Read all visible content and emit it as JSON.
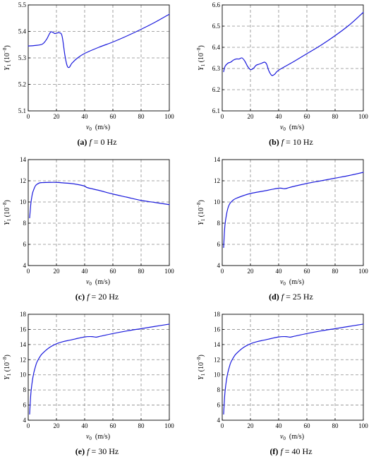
{
  "figure": {
    "charts": [
      {
        "id": "a",
        "caption": {
          "letter": "(a)",
          "var": "f",
          "rest": " = 0 Hz"
        },
        "ylabel": {
          "sym": "Y",
          "sub": "1",
          "unit": " (10",
          "exp": "−8",
          "close": ")"
        },
        "xlabel": {
          "sym": "v",
          "sub": "0",
          "unit": "  (m/s)"
        }
      },
      {
        "id": "b",
        "caption": {
          "letter": "(b)",
          "var": "f",
          "rest": " = 10 Hz"
        },
        "ylabel": {
          "sym": "Y",
          "sub": "1",
          "unit": " (10",
          "exp": "−8",
          "close": ")"
        },
        "xlabel": {
          "sym": "v",
          "sub": "0",
          "unit": "  (m/s)"
        }
      },
      {
        "id": "c",
        "caption": {
          "letter": "(c)",
          "var": "f",
          "rest": " = 20 Hz"
        },
        "ylabel": {
          "sym": "Y",
          "sub": "1",
          "unit": " (10",
          "exp": "−8",
          "close": ")"
        },
        "xlabel": {
          "sym": "v",
          "sub": "0",
          "unit": "  (m/s)"
        }
      },
      {
        "id": "d",
        "caption": {
          "letter": "(d)",
          "var": "f",
          "rest": " = 25 Hz"
        },
        "ylabel": {
          "sym": "Y",
          "sub": "1",
          "unit": " (10",
          "exp": "−8",
          "close": ")"
        },
        "xlabel": {
          "sym": "v",
          "sub": "0",
          "unit": "  (m/s)"
        }
      },
      {
        "id": "e",
        "caption": {
          "letter": "(e)",
          "var": "f",
          "rest": " = 30 Hz"
        },
        "ylabel": {
          "sym": "Y",
          "sub": "1",
          "unit": " (10",
          "exp": "−8",
          "close": ")"
        },
        "xlabel": {
          "sym": "v",
          "sub": "0",
          "unit": "  (m/s)"
        }
      },
      {
        "id": "f",
        "caption": {
          "letter": "(f)",
          "var": "f",
          "rest": " = 40 Hz"
        },
        "ylabel": {
          "sym": "Y",
          "sub": "1",
          "unit": " (10",
          "exp": "−8",
          "close": ")"
        },
        "xlabel": {
          "sym": "v",
          "sub": "0",
          "unit": "  (m/s)"
        }
      }
    ]
  },
  "colors": {
    "line": "#1a1adc",
    "grid": "#8a8a8a",
    "axis": "#000000"
  },
  "chart_data": [
    {
      "type": "line",
      "xlim": [
        0,
        100
      ],
      "ylim": [
        5.1,
        5.5
      ],
      "xticks": [
        0,
        20,
        40,
        60,
        80,
        100
      ],
      "yticks": [
        5.1,
        5.2,
        5.3,
        5.4,
        5.5
      ],
      "ytick_labels": [
        "5.1",
        "5.2",
        "5.3",
        "5.4",
        "5.5"
      ],
      "grid": true,
      "series": [
        {
          "x": [
            0,
            5,
            10,
            13,
            16,
            19,
            22,
            24,
            26,
            27.5,
            29,
            31,
            35,
            40,
            50,
            60,
            70,
            80,
            90,
            100
          ],
          "y": [
            5.345,
            5.347,
            5.352,
            5.37,
            5.398,
            5.392,
            5.395,
            5.382,
            5.31,
            5.272,
            5.264,
            5.28,
            5.3,
            5.317,
            5.34,
            5.36,
            5.383,
            5.408,
            5.435,
            5.465
          ]
        }
      ]
    },
    {
      "type": "line",
      "xlim": [
        0,
        100
      ],
      "ylim": [
        6.1,
        6.6
      ],
      "xticks": [
        0,
        20,
        40,
        60,
        80,
        100
      ],
      "yticks": [
        6.1,
        6.2,
        6.3,
        6.4,
        6.5,
        6.6
      ],
      "ytick_labels": [
        "6.1",
        "6.2",
        "6.3",
        "6.4",
        "6.5",
        "6.6"
      ],
      "grid": true,
      "series": [
        {
          "x": [
            1,
            2,
            4,
            6,
            8,
            10,
            12,
            14,
            16,
            18,
            20,
            22,
            24,
            26,
            28,
            30,
            31.5,
            33,
            35,
            37,
            40,
            50,
            60,
            70,
            80,
            90,
            100
          ],
          "y": [
            6.285,
            6.31,
            6.325,
            6.33,
            6.34,
            6.345,
            6.345,
            6.35,
            6.335,
            6.31,
            6.295,
            6.3,
            6.315,
            6.32,
            6.325,
            6.33,
            6.32,
            6.29,
            6.268,
            6.272,
            6.292,
            6.33,
            6.37,
            6.41,
            6.455,
            6.505,
            6.565
          ]
        }
      ]
    },
    {
      "type": "line",
      "xlim": [
        0,
        100
      ],
      "ylim": [
        4,
        14
      ],
      "xticks": [
        0,
        20,
        40,
        60,
        80,
        100
      ],
      "yticks": [
        4,
        6,
        8,
        10,
        12,
        14
      ],
      "ytick_labels": [
        "4",
        "6",
        "8",
        "10",
        "12",
        "14"
      ],
      "grid": true,
      "series": [
        {
          "x": [
            1,
            1.5,
            2,
            3,
            4,
            5,
            6,
            8,
            10,
            15,
            20,
            25,
            30,
            35,
            40,
            42,
            50,
            60,
            70,
            80,
            90,
            100
          ],
          "y": [
            8.5,
            9.3,
            10.0,
            10.8,
            11.2,
            11.5,
            11.65,
            11.8,
            11.83,
            11.85,
            11.85,
            11.8,
            11.75,
            11.65,
            11.5,
            11.35,
            11.1,
            10.75,
            10.45,
            10.15,
            9.95,
            9.75
          ]
        }
      ]
    },
    {
      "type": "line",
      "xlim": [
        0,
        100
      ],
      "ylim": [
        4,
        14
      ],
      "xticks": [
        0,
        20,
        40,
        60,
        80,
        100
      ],
      "yticks": [
        4,
        6,
        8,
        10,
        12,
        14
      ],
      "ytick_labels": [
        "4",
        "6",
        "8",
        "10",
        "12",
        "14"
      ],
      "grid": true,
      "series": [
        {
          "x": [
            1,
            1.5,
            2,
            3,
            4,
            5,
            6,
            8,
            10,
            15,
            20,
            30,
            40,
            44,
            46,
            50,
            60,
            70,
            80,
            90,
            100
          ],
          "y": [
            5.7,
            7.0,
            7.9,
            8.8,
            9.4,
            9.75,
            9.95,
            10.2,
            10.35,
            10.6,
            10.8,
            11.05,
            11.3,
            11.25,
            11.3,
            11.45,
            11.75,
            12.0,
            12.25,
            12.5,
            12.8
          ]
        }
      ]
    },
    {
      "type": "line",
      "xlim": [
        0,
        100
      ],
      "ylim": [
        4,
        18
      ],
      "xticks": [
        0,
        20,
        40,
        60,
        80,
        100
      ],
      "yticks": [
        4,
        6,
        8,
        10,
        12,
        14,
        16,
        18
      ],
      "ytick_labels": [
        "4",
        "6",
        "8",
        "10",
        "12",
        "14",
        "16",
        "18"
      ],
      "grid": true,
      "series": [
        {
          "x": [
            1,
            1.5,
            2,
            3,
            4,
            5,
            6,
            8,
            10,
            15,
            20,
            25,
            30,
            40,
            45,
            48,
            50,
            60,
            70,
            80,
            90,
            100
          ],
          "y": [
            4.8,
            6.5,
            7.8,
            9.3,
            10.3,
            11.0,
            11.6,
            12.3,
            12.8,
            13.6,
            14.1,
            14.4,
            14.6,
            15.0,
            15.05,
            14.98,
            15.05,
            15.45,
            15.8,
            16.1,
            16.4,
            16.7
          ]
        }
      ]
    },
    {
      "type": "line",
      "xlim": [
        0,
        100
      ],
      "ylim": [
        4,
        18
      ],
      "xticks": [
        0,
        20,
        40,
        60,
        80,
        100
      ],
      "yticks": [
        4,
        6,
        8,
        10,
        12,
        14,
        16,
        18
      ],
      "ytick_labels": [
        "4",
        "6",
        "8",
        "10",
        "12",
        "14",
        "16",
        "18"
      ],
      "grid": true,
      "series": [
        {
          "x": [
            1,
            1.5,
            2,
            3,
            4,
            5,
            6,
            8,
            10,
            15,
            20,
            25,
            30,
            40,
            45,
            48,
            50,
            60,
            70,
            80,
            90,
            100
          ],
          "y": [
            4.8,
            6.5,
            7.8,
            9.3,
            10.3,
            11.0,
            11.6,
            12.3,
            12.8,
            13.6,
            14.1,
            14.4,
            14.6,
            15.0,
            15.05,
            14.98,
            15.05,
            15.45,
            15.8,
            16.1,
            16.4,
            16.7
          ]
        }
      ]
    }
  ]
}
